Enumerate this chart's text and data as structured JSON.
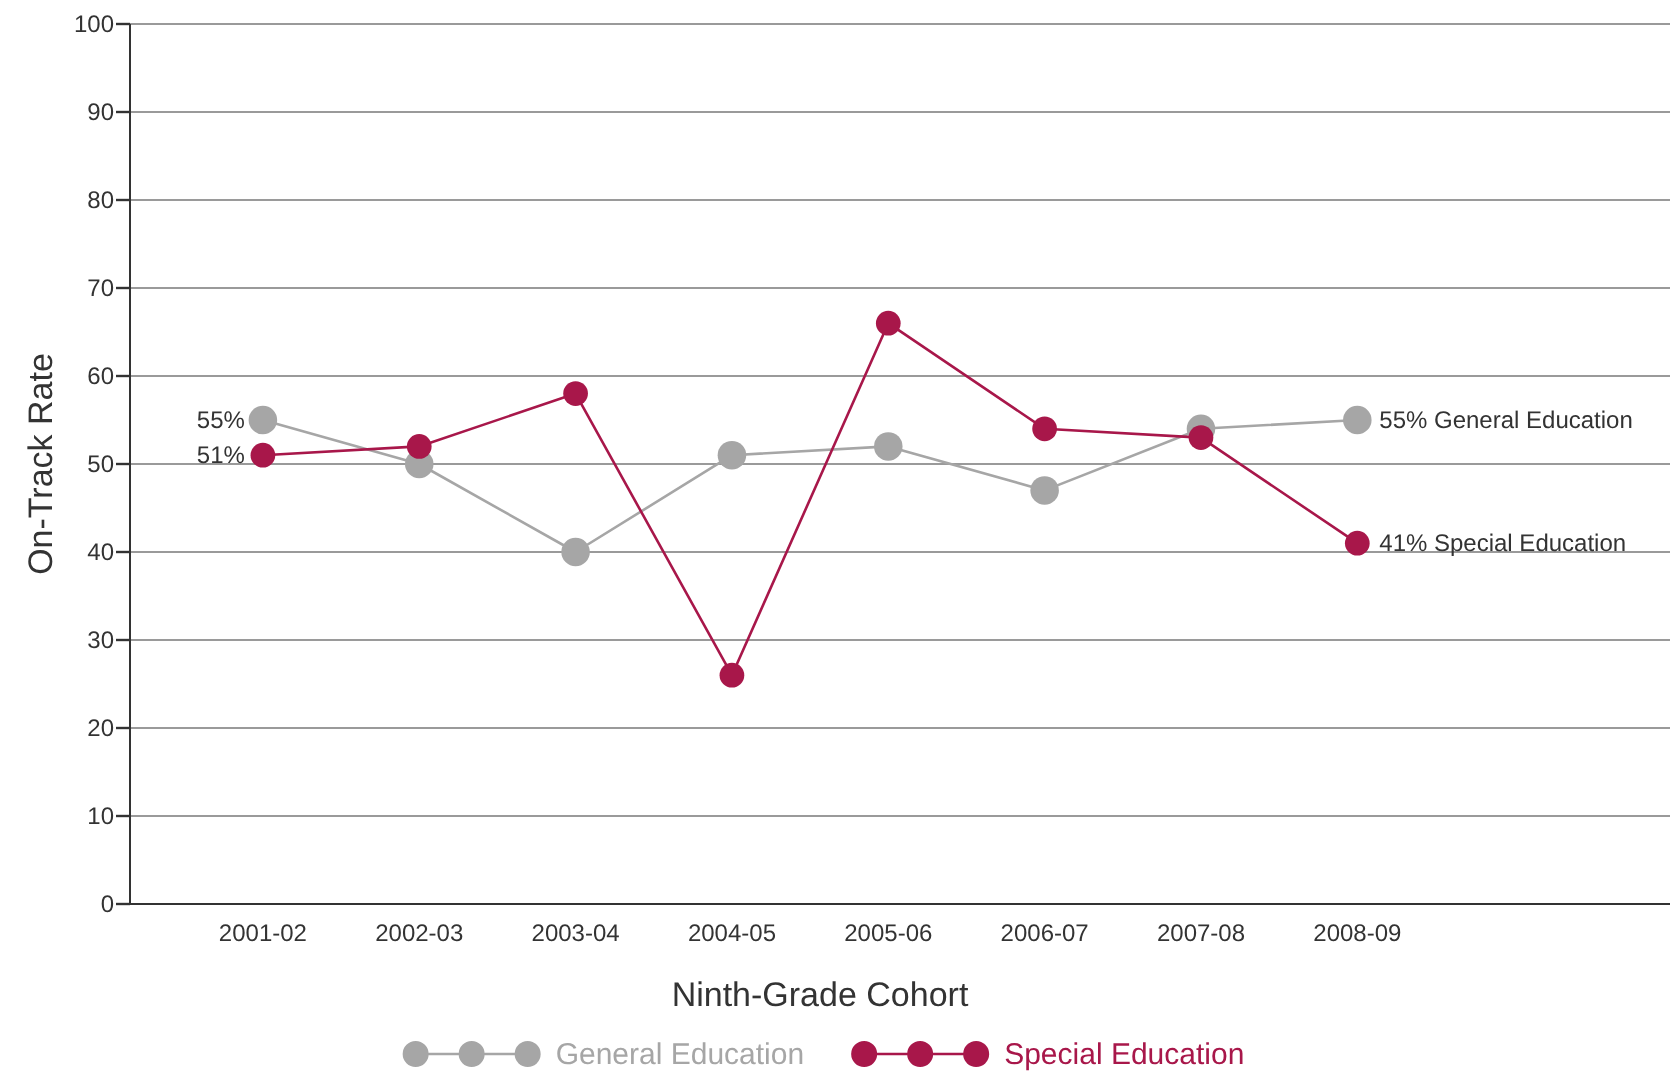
{
  "chart_data": {
    "type": "line",
    "xlabel": "Ninth-Grade Cohort",
    "ylabel": "On-Track Rate",
    "categories": [
      "2001-02",
      "2002-03",
      "2003-04",
      "2004-05",
      "2005-06",
      "2006-07",
      "2007-08",
      "2008-09"
    ],
    "series": [
      {
        "name": "General Education",
        "color": "#a6a6a6",
        "values": [
          55,
          50,
          40,
          51,
          52,
          47,
          54,
          55
        ]
      },
      {
        "name": "Special Education",
        "color": "#a8174a",
        "values": [
          51,
          52,
          58,
          26,
          66,
          54,
          53,
          41
        ]
      }
    ],
    "ylim": [
      0,
      100
    ],
    "yticks": [
      0,
      10,
      20,
      30,
      40,
      50,
      60,
      70,
      80,
      90,
      100
    ],
    "grid": "y",
    "legend": "bottom",
    "marker": "circle",
    "line_style": "solid",
    "annotations": [
      {
        "text": "55%",
        "x": "2001-02",
        "y": 55
      },
      {
        "text": "51%",
        "x": "2001-02",
        "y": 51
      },
      {
        "text": "55% General Education",
        "x": "2008-09",
        "y": 55
      },
      {
        "text": "41% Special Education",
        "x": "2008-09",
        "y": 41
      }
    ]
  }
}
